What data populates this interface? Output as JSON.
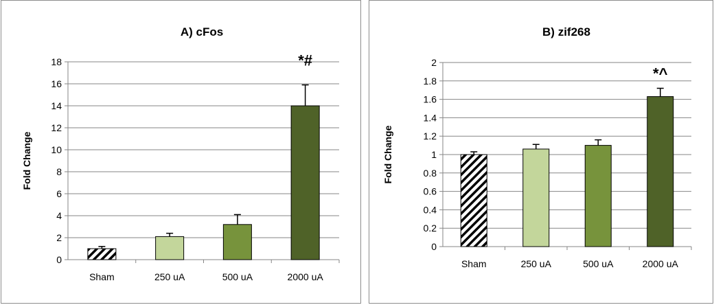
{
  "chart_data": [
    {
      "type": "bar",
      "title": "A) cFos",
      "ylabel": "Fold Change",
      "xlabel": "",
      "categories": [
        "Sham",
        "250 uA",
        "500 uA",
        "2000 uA"
      ],
      "values": [
        1.0,
        2.1,
        3.2,
        14.0
      ],
      "errors": [
        0.2,
        0.3,
        0.9,
        1.9
      ],
      "annotations": [
        "",
        "",
        "",
        "*#"
      ],
      "ylim": [
        0,
        18
      ],
      "yticks": [
        "0",
        "2",
        "4",
        "6",
        "8",
        "10",
        "12",
        "14",
        "16",
        "18"
      ],
      "grid": true,
      "legend": "none",
      "bar_fills": [
        "hatch",
        "#c3d69b",
        "#77933c",
        "#4f6228"
      ]
    },
    {
      "type": "bar",
      "title": "B) zif268",
      "ylabel": "Fold Change",
      "xlabel": "",
      "categories": [
        "Sham",
        "250 uA",
        "500 uA",
        "2000 uA"
      ],
      "values": [
        1.0,
        1.06,
        1.1,
        1.63
      ],
      "errors": [
        0.03,
        0.05,
        0.06,
        0.09
      ],
      "annotations": [
        "",
        "",
        "",
        "*^"
      ],
      "ylim": [
        0,
        2
      ],
      "yticks": [
        "0",
        "0.2",
        "0.4",
        "0.6",
        "0.8",
        "1",
        "1.2",
        "1.4",
        "1.6",
        "1.8",
        "2"
      ],
      "grid": true,
      "legend": "none",
      "bar_fills": [
        "hatch",
        "#c3d69b",
        "#77933c",
        "#4f6228"
      ]
    }
  ]
}
